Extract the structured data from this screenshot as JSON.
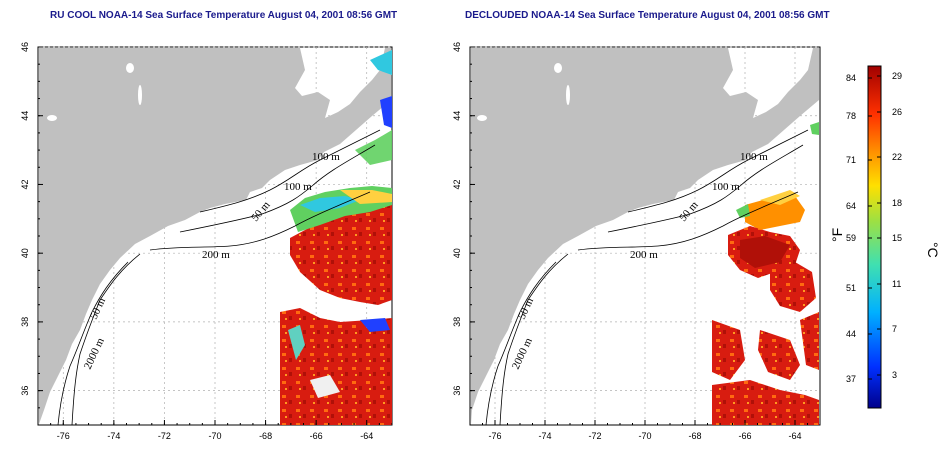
{
  "panels": [
    {
      "id": "left",
      "title": "RU COOL NOAA-14 Sea Surface Temperature August 04, 2001 08:56 GMT",
      "contour_labels": [
        "100 m",
        "100 m",
        "50 m",
        "200 m",
        "50 m",
        "2000 m"
      ]
    },
    {
      "id": "right",
      "title": "DECLOUDED NOAA-14 Sea Surface Temperature August 04, 2001 08:56 GMT",
      "contour_labels": [
        "100 m",
        "100 m",
        "50 m",
        "200 m",
        "50 m",
        "2000 m"
      ]
    }
  ],
  "axes": {
    "lon_ticks": [
      "-76",
      "-74",
      "-72",
      "-70",
      "-68",
      "-66",
      "-64"
    ],
    "lat_ticks": [
      "46",
      "44",
      "42",
      "40",
      "38",
      "36"
    ],
    "lon_range": [
      -77,
      -63
    ],
    "lat_range": [
      35,
      46
    ],
    "grid": "dotted"
  },
  "colorbar": {
    "fahrenheit_ticks": [
      "84",
      "78",
      "71",
      "64",
      "59",
      "51",
      "44",
      "37"
    ],
    "celsius_ticks": [
      "29",
      "26",
      "22",
      "18",
      "15",
      "11",
      "7",
      "3"
    ],
    "fahrenheit_unit": "°F",
    "celsius_unit": "°C"
  },
  "colors": {
    "land": "#c0c0c0",
    "title": "#1a1a8c",
    "sst_warm": "#c81414",
    "sst_hot": "#e83010",
    "sst_orange": "#ff9000",
    "sst_green": "#60d060",
    "sst_cyan": "#30c8e0",
    "sst_blue": "#2040ff"
  }
}
